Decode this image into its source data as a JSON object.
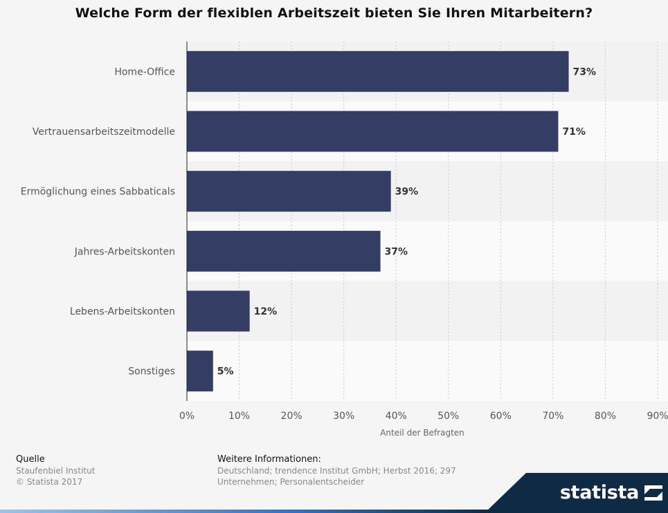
{
  "title": "Welche Form der flexiblen Arbeitszeit bieten Sie Ihren Mitarbeitern?",
  "chart_data": {
    "type": "bar",
    "orientation": "horizontal",
    "categories": [
      "Home-Office",
      "Vertrauensarbeitszeitmodelle",
      "Ermöglichung eines Sabbaticals",
      "Jahres-Arbeitskonten",
      "Lebens-Arbeitskonten",
      "Sonstiges"
    ],
    "values": [
      73,
      71,
      39,
      37,
      12,
      5
    ],
    "value_labels": [
      "73%",
      "71%",
      "39%",
      "37%",
      "12%",
      "5%"
    ],
    "xlabel": "Anteil der Befragten",
    "xlim": [
      0,
      90
    ],
    "xticks": [
      0,
      10,
      20,
      30,
      40,
      50,
      60,
      70,
      80,
      90
    ],
    "xtick_labels": [
      "0%",
      "10%",
      "20%",
      "30%",
      "40%",
      "50%",
      "60%",
      "70%",
      "80%",
      "90%"
    ],
    "grid": true,
    "bar_color": "#343d64"
  },
  "footer": {
    "source_heading": "Quelle",
    "source_name": "Staufenbiel Institut",
    "copyright": "© Statista 2017",
    "info_heading": "Weitere Informationen:",
    "info_text": "Deutschland; trendence Institut GmbH; Herbst 2016; 297 Unternehmen; Personalentscheider"
  },
  "brand": {
    "logo_text": "statista",
    "color": "#0e2a45"
  }
}
